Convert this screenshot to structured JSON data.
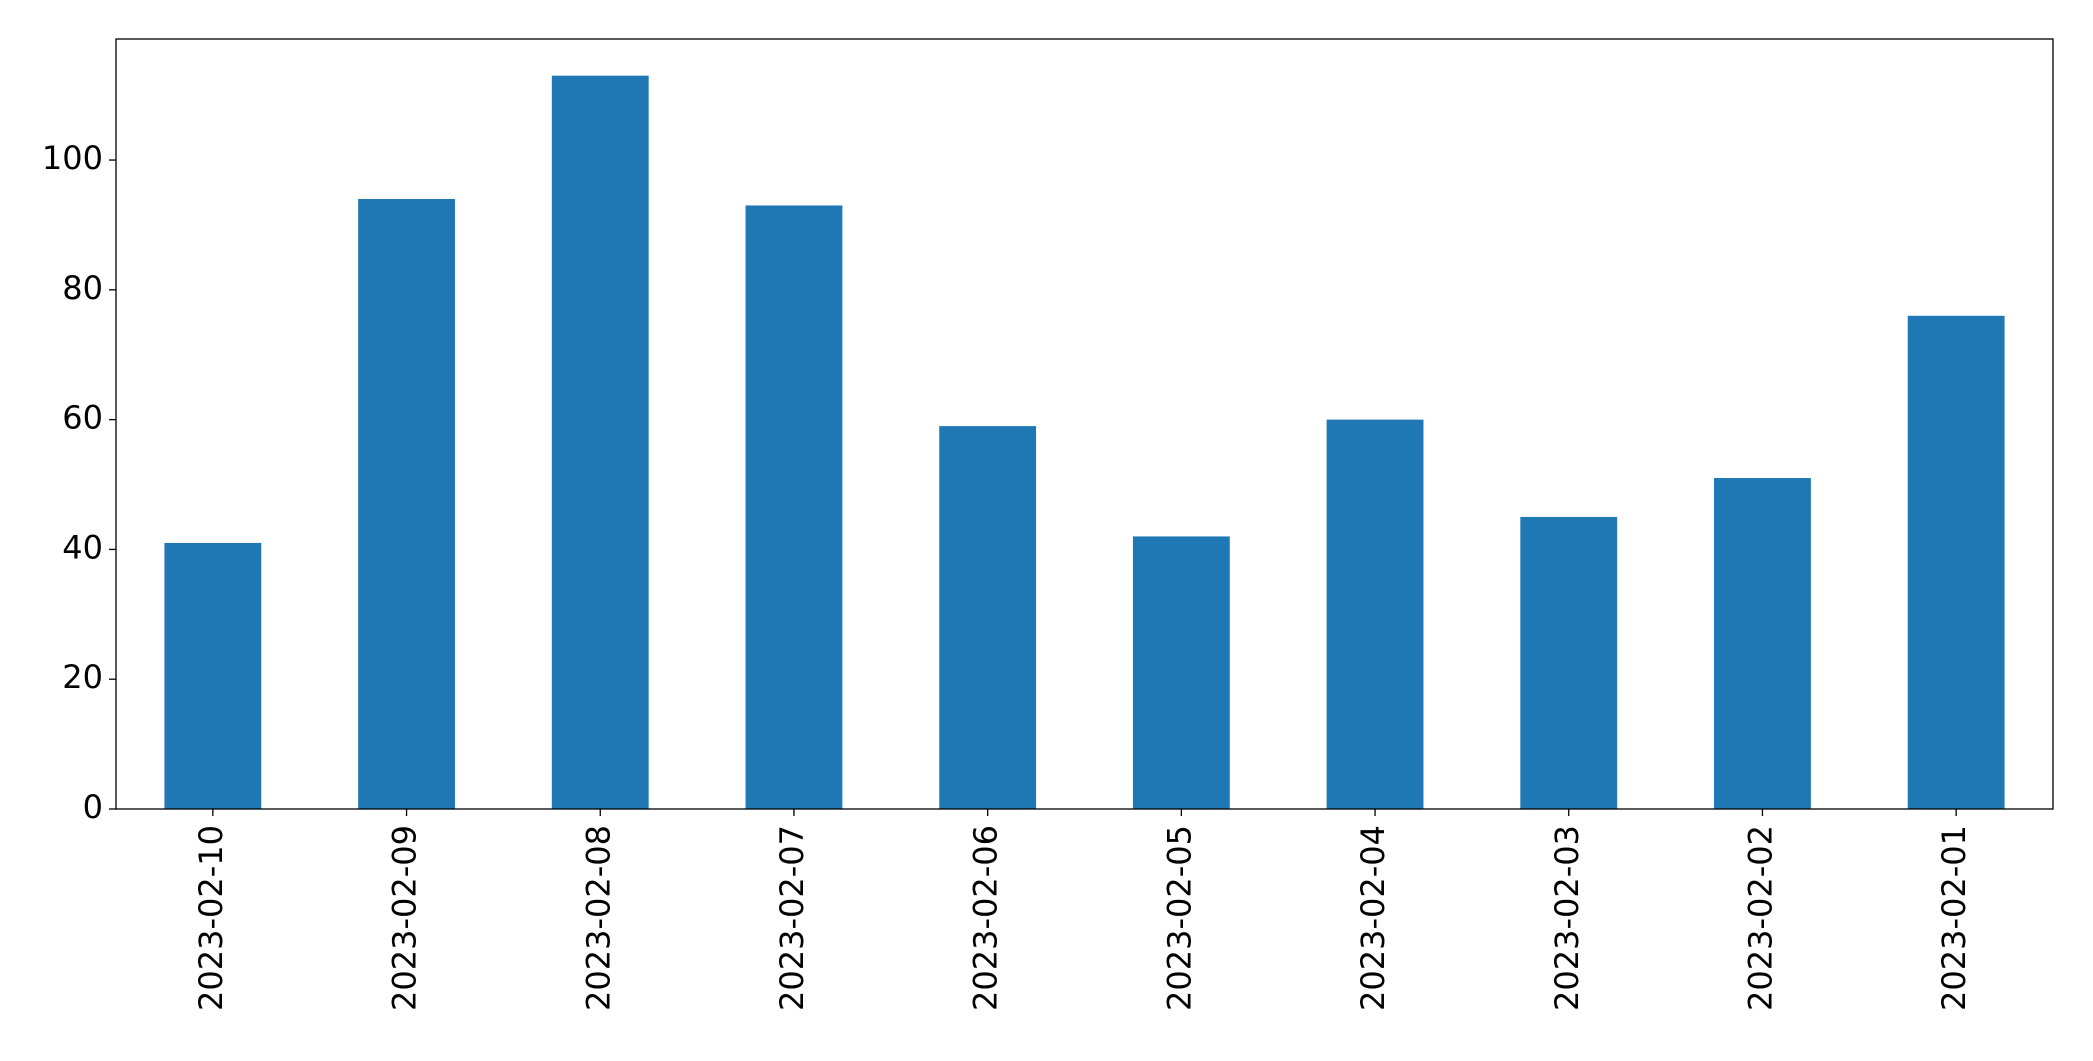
{
  "chart_data": {
    "type": "bar",
    "categories": [
      "2023-02-10",
      "2023-02-09",
      "2023-02-08",
      "2023-02-07",
      "2023-02-06",
      "2023-02-05",
      "2023-02-04",
      "2023-02-03",
      "2023-02-02",
      "2023-02-01"
    ],
    "values": [
      41,
      94,
      113,
      93,
      59,
      42,
      60,
      45,
      51,
      76
    ],
    "color": "#1f77b4",
    "ylim": [
      0,
      118.65
    ],
    "yticks": [
      0,
      20,
      40,
      60,
      80,
      100
    ],
    "grid": false
  }
}
